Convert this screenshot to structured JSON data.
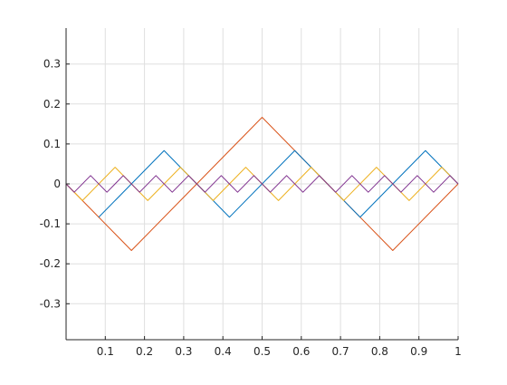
{
  "chart_data": {
    "type": "line",
    "title": "",
    "xlabel": "",
    "ylabel": "",
    "xlim": [
      0,
      1
    ],
    "ylim": [
      -0.39,
      0.39
    ],
    "grid": true,
    "legend": "none",
    "xticks": [
      0.1,
      0.2,
      0.3,
      0.4,
      0.5,
      0.6,
      0.7,
      0.8,
      0.9,
      1
    ],
    "xtick_labels": [
      "0.1",
      "0.2",
      "0.3",
      "0.4",
      "0.5",
      "0.6",
      "0.7",
      "0.8",
      "0.9",
      "1"
    ],
    "yticks": [
      -0.3,
      -0.2,
      -0.1,
      0,
      0.1,
      0.2,
      0.3
    ],
    "ytick_labels": [
      "-0.3",
      "-0.2",
      "-0.1",
      "0",
      "0.1",
      "0.2",
      "0.3"
    ],
    "series": [
      {
        "color": "#D95319",
        "x": [
          0,
          0.1667,
          0.5,
          0.8333,
          1
        ],
        "y": [
          0,
          -0.1667,
          0.1667,
          -0.1667,
          0
        ]
      },
      {
        "color": "#0072BD",
        "x": [
          0.0833,
          0.25,
          0.4167,
          0.5833,
          0.75,
          0.9167,
          1
        ],
        "y": [
          -0.0833,
          0.0833,
          -0.0833,
          0.0833,
          -0.0833,
          0.0833,
          0
        ]
      },
      {
        "color": "#EDB120",
        "x": [
          0,
          0.0417,
          0.125,
          0.2083,
          0.2917,
          0.375,
          0.4583,
          0.5417,
          0.625,
          0.7083,
          0.7917,
          0.875,
          0.9583,
          1
        ],
        "y": [
          0,
          -0.0417,
          0.0417,
          -0.0417,
          0.0417,
          -0.0417,
          0.0417,
          -0.0417,
          0.0417,
          -0.0417,
          0.0417,
          -0.0417,
          0.0417,
          0
        ]
      },
      {
        "color": "#7E2F8E",
        "x": [
          0,
          0.0208,
          0.0625,
          0.1042,
          0.1458,
          0.1875,
          0.2292,
          0.2708,
          0.3125,
          0.3542,
          0.3958,
          0.4375,
          0.4792,
          0.5208,
          0.5625,
          0.6042,
          0.6458,
          0.6875,
          0.7292,
          0.7708,
          0.8125,
          0.8542,
          0.8958,
          0.9375,
          0.9792,
          1
        ],
        "y": [
          0,
          -0.0208,
          0.0208,
          -0.0208,
          0.0208,
          -0.0208,
          0.0208,
          -0.0208,
          0.0208,
          -0.0208,
          0.0208,
          -0.0208,
          0.0208,
          -0.0208,
          0.0208,
          -0.0208,
          0.0208,
          -0.0208,
          0.0208,
          -0.0208,
          0.0208,
          -0.0208,
          0.0208,
          -0.0208,
          0.0208,
          0
        ]
      }
    ]
  }
}
